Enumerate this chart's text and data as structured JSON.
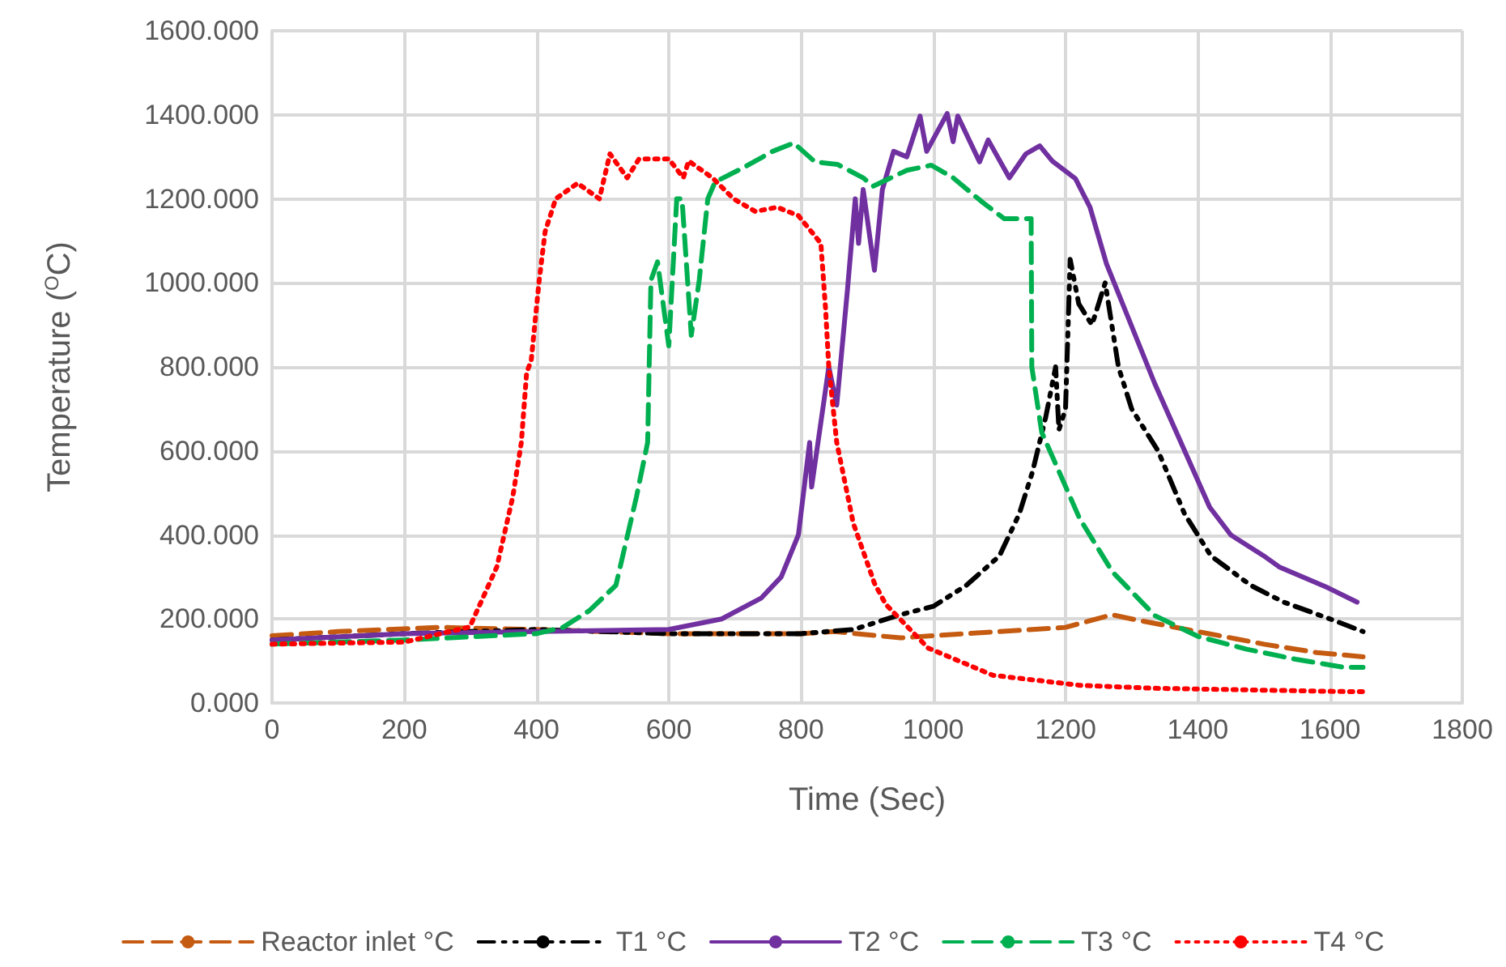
{
  "chart_data": {
    "type": "line",
    "xlabel": "Time (Sec)",
    "ylabel": "Temperature ($^{O}$C)",
    "xlim": [
      0,
      1800
    ],
    "xticks": [
      0,
      200,
      400,
      600,
      800,
      1000,
      1200,
      1400,
      1600,
      1800
    ],
    "ylim": [
      0,
      1600
    ],
    "yticks": [
      {
        "value": 0,
        "label": "0.000"
      },
      {
        "value": 200,
        "label": "200.000"
      },
      {
        "value": 400,
        "label": "400.000"
      },
      {
        "value": 600,
        "label": "600.000"
      },
      {
        "value": 800,
        "label": "800.000"
      },
      {
        "value": 1000,
        "label": "1000.000"
      },
      {
        "value": 1200,
        "label": "1200.000"
      },
      {
        "value": 1400,
        "label": "1400.000"
      },
      {
        "value": 1600,
        "label": "1600.000"
      }
    ],
    "grid": true,
    "legend": "bottom",
    "marker": "none",
    "series": [
      {
        "name": "Reactor inlet °C",
        "color": "#c55a11",
        "line_style": "dashed",
        "x": [
          0,
          100,
          250,
          400,
          600,
          800,
          850,
          950,
          1000,
          1100,
          1200,
          1270,
          1300,
          1400,
          1500,
          1580,
          1650
        ],
        "values": [
          160,
          170,
          180,
          175,
          165,
          165,
          170,
          155,
          160,
          170,
          180,
          210,
          200,
          170,
          140,
          120,
          110
        ]
      },
      {
        "name": "T1 °C",
        "color": "#000000",
        "line_style": "dashdot",
        "x": [
          0,
          200,
          400,
          600,
          800,
          880,
          950,
          1000,
          1050,
          1100,
          1130,
          1150,
          1170,
          1185,
          1190,
          1200,
          1207,
          1220,
          1240,
          1260,
          1265,
          1280,
          1300,
          1340,
          1380,
          1420,
          1480,
          1530,
          1600,
          1650
        ],
        "values": [
          150,
          165,
          175,
          165,
          165,
          175,
          210,
          230,
          280,
          350,
          450,
          550,
          680,
          800,
          650,
          700,
          1056,
          950,
          900,
          1000,
          950,
          800,
          700,
          600,
          450,
          350,
          280,
          240,
          200,
          170
        ]
      },
      {
        "name": "T2 °C",
        "color": "#7030a0",
        "line_style": "solid",
        "x": [
          0,
          200,
          400,
          600,
          680,
          740,
          770,
          796,
          813,
          816,
          842,
          854,
          870,
          882,
          887,
          894,
          911,
          923,
          940,
          960,
          980,
          990,
          1021,
          1030,
          1037,
          1070,
          1083,
          1115,
          1140,
          1161,
          1180,
          1205,
          1215,
          1237,
          1262,
          1335,
          1418,
          1450,
          1499,
          1523,
          1597,
          1641
        ],
        "values": [
          150,
          165,
          170,
          175,
          200,
          250,
          300,
          400,
          620,
          514,
          800,
          709,
          980,
          1200,
          1094,
          1222,
          1030,
          1222,
          1313,
          1300,
          1397,
          1313,
          1403,
          1336,
          1397,
          1288,
          1340,
          1250,
          1307,
          1326,
          1290,
          1260,
          1248,
          1180,
          1045,
          760,
          466,
          400,
          351,
          324,
          274,
          240
        ]
      },
      {
        "name": "T3 °C",
        "color": "#00b050",
        "line_style": "dashed",
        "x": [
          0,
          200,
          400,
          440,
          480,
          520,
          551,
          568,
          573,
          583,
          600,
          612,
          620,
          634,
          646,
          659,
          670,
          715,
          757,
          789,
          821,
          855,
          894,
          909,
          960,
          997,
          1030,
          1075,
          1107,
          1148,
          1149,
          1164,
          1189,
          1221,
          1271,
          1335,
          1401,
          1474,
          1548,
          1621,
          1650
        ],
        "values": [
          140,
          150,
          165,
          180,
          220,
          280,
          490,
          620,
          1006,
          1050,
          850,
          1200,
          1200,
          875,
          1006,
          1200,
          1240,
          1276,
          1313,
          1333,
          1288,
          1282,
          1250,
          1230,
          1268,
          1280,
          1250,
          1191,
          1153,
          1153,
          800,
          644,
          555,
          440,
          312,
          208,
          158,
          128,
          104,
          85,
          85
        ]
      },
      {
        "name": "T4 °C",
        "color": "#ff0000",
        "line_style": "dotted",
        "x": [
          0,
          200,
          299,
          340,
          364,
          377,
          385,
          392,
          404,
          413,
          429,
          462,
          495,
          511,
          537,
          555,
          600,
          622,
          630,
          666,
          698,
          731,
          764,
          796,
          830,
          837,
          842,
          854,
          879,
          911,
          928,
          992,
          1090,
          1222,
          1335,
          1629,
          1650
        ],
        "values": [
          140,
          145,
          181,
          324,
          490,
          620,
          786,
          816,
          1006,
          1122,
          1200,
          1237,
          1200,
          1307,
          1250,
          1295,
          1295,
          1250,
          1290,
          1250,
          1200,
          1170,
          1180,
          1160,
          1094,
          940,
          800,
          620,
          428,
          285,
          235,
          131,
          66,
          42,
          35,
          27,
          27
        ]
      }
    ]
  }
}
